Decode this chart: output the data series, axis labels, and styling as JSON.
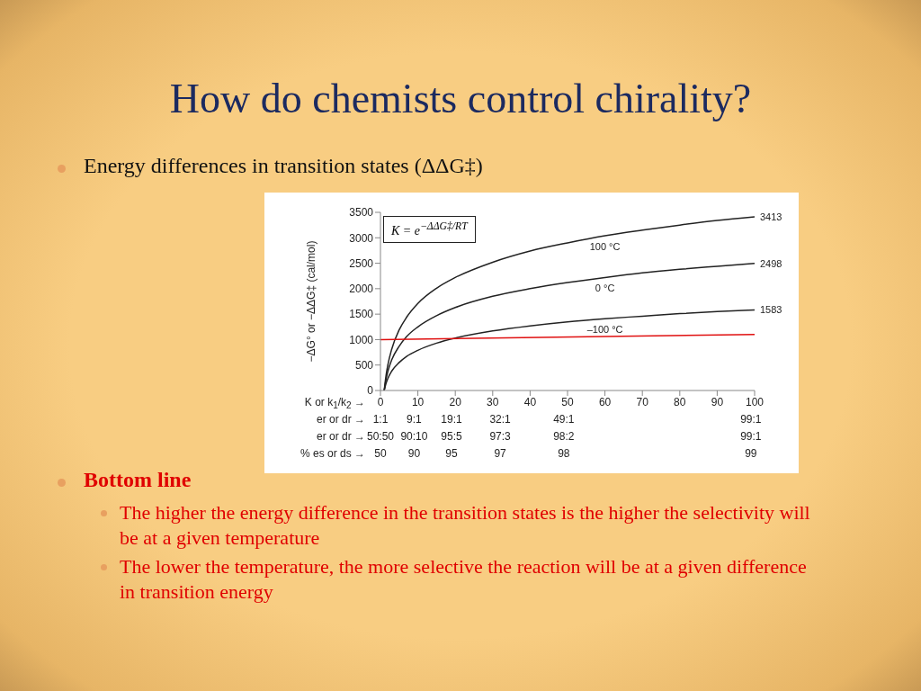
{
  "chart_data": {
    "type": "line",
    "title": "How do chemists control chirality?",
    "subtitle": "Energy differences in transition states (ΔΔG‡)",
    "xlabel": "K or k$_{1}$/k$_{2}$ →",
    "ylabel": "−ΔG° or −ΔΔG‡ (cal/mol)",
    "xlim": [
      0,
      100
    ],
    "xticks": [
      0,
      10,
      20,
      30,
      40,
      50,
      60,
      70,
      80,
      90,
      100
    ],
    "ylim": [
      0,
      3500
    ],
    "yticks": [
      0,
      500,
      1000,
      1500,
      2000,
      2500,
      3000,
      3500
    ],
    "marker": "none",
    "line_style": "solid",
    "series": [
      {
        "name": "100 °C",
        "color": "#222222",
        "x": [
          1,
          1.5,
          2,
          3,
          5,
          7,
          10,
          15,
          20,
          30,
          40,
          50,
          60,
          70,
          80,
          90,
          100
        ],
        "values": [
          0,
          300,
          510,
          810,
          1190,
          1440,
          1710,
          2010,
          2220,
          2520,
          2740,
          2900,
          3040,
          3150,
          3250,
          3340,
          3413
        ],
        "value_labels": [
          null,
          null,
          null,
          null,
          null,
          null,
          null,
          null,
          null,
          null,
          null,
          null,
          null,
          null,
          null,
          null,
          "3413"
        ]
      },
      {
        "name": "0 °C",
        "color": "#222222",
        "x": [
          1,
          1.5,
          2,
          3,
          5,
          7,
          10,
          15,
          20,
          30,
          40,
          50,
          60,
          70,
          80,
          90,
          100
        ],
        "values": [
          0,
          220,
          380,
          600,
          870,
          1060,
          1250,
          1470,
          1630,
          1850,
          2000,
          2120,
          2220,
          2310,
          2380,
          2440,
          2498
        ],
        "value_labels": [
          null,
          null,
          null,
          null,
          null,
          null,
          null,
          null,
          null,
          null,
          null,
          null,
          null,
          null,
          null,
          null,
          "2498"
        ]
      },
      {
        "name": "–100 °C",
        "color": "#222222",
        "x": [
          1,
          1.5,
          2,
          3,
          5,
          7,
          10,
          15,
          20,
          30,
          40,
          50,
          60,
          70,
          80,
          90,
          100
        ],
        "values": [
          0,
          140,
          240,
          380,
          550,
          670,
          790,
          930,
          1030,
          1170,
          1270,
          1350,
          1410,
          1460,
          1510,
          1550,
          1583
        ],
        "value_labels": [
          null,
          null,
          null,
          null,
          null,
          null,
          null,
          null,
          null,
          null,
          null,
          null,
          null,
          null,
          null,
          null,
          "1583"
        ]
      },
      {
        "color": "#e01010",
        "x": [
          0,
          100
        ],
        "values": [
          1000,
          1100
        ]
      }
    ],
    "annotations": [
      "K = e$^{−ΔΔG‡/RT}$",
      "Bottom line",
      "The higher the energy difference in the transition states is the higher the selectivity will be at a given temperature",
      "The lower the temperature, the more selective the reaction will be at a given difference in transition energy",
      "er or dr →",
      "1:1",
      "9:1",
      "19:1",
      "32:1",
      "49:1",
      "99:1",
      "er or dr →",
      "50:50",
      "90:10",
      "95:5",
      "97:3",
      "98:2",
      "99:1",
      "% es or ds →",
      "50",
      "90",
      "95",
      "97",
      "98",
      "99"
    ]
  }
}
